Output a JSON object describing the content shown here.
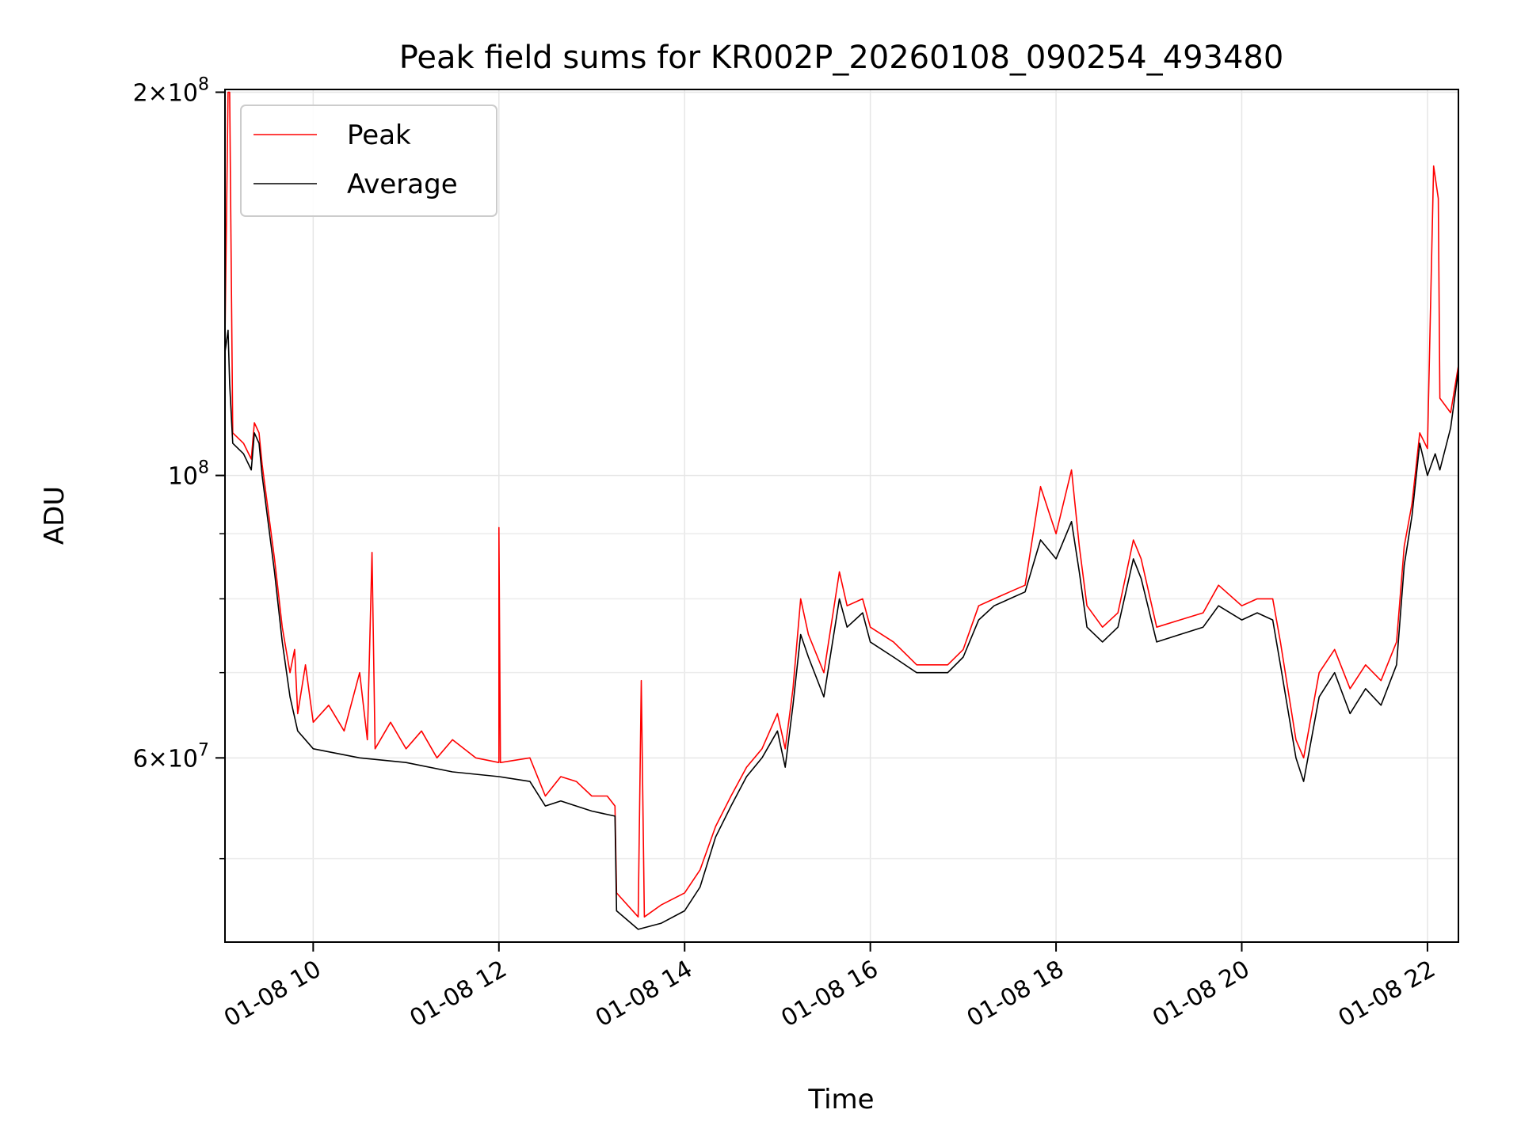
{
  "chart_data": {
    "type": "line",
    "title": "Peak field sums for KR002P_20260108_090254_493480",
    "xlabel": "Time",
    "ylabel": "ADU",
    "y_scale": "log",
    "ylim": [
      43000000,
      201000000
    ],
    "xlim": [
      "2026-01-08T09:03",
      "2026-01-08T22:20"
    ],
    "grid": true,
    "legend_position": "upper left",
    "x_ticks": [
      {
        "time": "2026-01-08T10:00",
        "label": "01-08 10"
      },
      {
        "time": "2026-01-08T12:00",
        "label": "01-08 12"
      },
      {
        "time": "2026-01-08T14:00",
        "label": "01-08 14"
      },
      {
        "time": "2026-01-08T16:00",
        "label": "01-08 16"
      },
      {
        "time": "2026-01-08T18:00",
        "label": "01-08 18"
      },
      {
        "time": "2026-01-08T20:00",
        "label": "01-08 20"
      },
      {
        "time": "2026-01-08T22:00",
        "label": "01-08 22"
      }
    ],
    "y_ticks": [
      {
        "value": 200000000,
        "mantissa": "2",
        "exponent": "8"
      },
      {
        "value": 100000000,
        "mantissa": "",
        "exponent": "8"
      },
      {
        "value": 60000000,
        "mantissa": "6",
        "exponent": "7"
      }
    ],
    "y_minor_ticks": [
      50000000,
      70000000,
      80000000,
      90000000
    ],
    "series": [
      {
        "name": "Peak",
        "color": "#ff0000",
        "points": [
          [
            "2026-01-08T09:03",
            128000000
          ],
          [
            "2026-01-08T09:05",
            200000000
          ],
          [
            "2026-01-08T09:06",
            200000000
          ],
          [
            "2026-01-08T09:08",
            108000000
          ],
          [
            "2026-01-08T09:15",
            106000000
          ],
          [
            "2026-01-08T09:20",
            103000000
          ],
          [
            "2026-01-08T09:22",
            110000000
          ],
          [
            "2026-01-08T09:25",
            108000000
          ],
          [
            "2026-01-08T09:27",
            102000000
          ],
          [
            "2026-01-08T09:35",
            86000000
          ],
          [
            "2026-01-08T09:40",
            76000000
          ],
          [
            "2026-01-08T09:45",
            70000000
          ],
          [
            "2026-01-08T09:48",
            73000000
          ],
          [
            "2026-01-08T09:50",
            65000000
          ],
          [
            "2026-01-08T09:55",
            71000000
          ],
          [
            "2026-01-08T10:00",
            64000000
          ],
          [
            "2026-01-08T10:10",
            66000000
          ],
          [
            "2026-01-08T10:20",
            63000000
          ],
          [
            "2026-01-08T10:30",
            70000000
          ],
          [
            "2026-01-08T10:35",
            62000000
          ],
          [
            "2026-01-08T10:38",
            87000000
          ],
          [
            "2026-01-08T10:40",
            61000000
          ],
          [
            "2026-01-08T10:50",
            64000000
          ],
          [
            "2026-01-08T11:00",
            61000000
          ],
          [
            "2026-01-08T11:10",
            63000000
          ],
          [
            "2026-01-08T11:20",
            60000000
          ],
          [
            "2026-01-08T11:30",
            62000000
          ],
          [
            "2026-01-08T11:45",
            60000000
          ],
          [
            "2026-01-08T12:00",
            59500000
          ],
          [
            "2026-01-08T12:00",
            91000000
          ],
          [
            "2026-01-08T12:01",
            59500000
          ],
          [
            "2026-01-08T12:20",
            60000000
          ],
          [
            "2026-01-08T12:30",
            56000000
          ],
          [
            "2026-01-08T12:40",
            58000000
          ],
          [
            "2026-01-08T12:50",
            57500000
          ],
          [
            "2026-01-08T13:00",
            56000000
          ],
          [
            "2026-01-08T13:10",
            56000000
          ],
          [
            "2026-01-08T13:15",
            55000000
          ],
          [
            "2026-01-08T13:16",
            47000000
          ],
          [
            "2026-01-08T13:30",
            45000000
          ],
          [
            "2026-01-08T13:32",
            69000000
          ],
          [
            "2026-01-08T13:34",
            45000000
          ],
          [
            "2026-01-08T13:45",
            46000000
          ],
          [
            "2026-01-08T14:00",
            47000000
          ],
          [
            "2026-01-08T14:10",
            49000000
          ],
          [
            "2026-01-08T14:20",
            53000000
          ],
          [
            "2026-01-08T14:30",
            56000000
          ],
          [
            "2026-01-08T14:40",
            59000000
          ],
          [
            "2026-01-08T14:50",
            61000000
          ],
          [
            "2026-01-08T15:00",
            65000000
          ],
          [
            "2026-01-08T15:05",
            61000000
          ],
          [
            "2026-01-08T15:10",
            68000000
          ],
          [
            "2026-01-08T15:15",
            80000000
          ],
          [
            "2026-01-08T15:20",
            75000000
          ],
          [
            "2026-01-08T15:30",
            70000000
          ],
          [
            "2026-01-08T15:40",
            84000000
          ],
          [
            "2026-01-08T15:45",
            79000000
          ],
          [
            "2026-01-08T15:55",
            80000000
          ],
          [
            "2026-01-08T16:00",
            76000000
          ],
          [
            "2026-01-08T16:15",
            74000000
          ],
          [
            "2026-01-08T16:30",
            71000000
          ],
          [
            "2026-01-08T16:50",
            71000000
          ],
          [
            "2026-01-08T17:00",
            73000000
          ],
          [
            "2026-01-08T17:10",
            79000000
          ],
          [
            "2026-01-08T17:20",
            80000000
          ],
          [
            "2026-01-08T17:30",
            81000000
          ],
          [
            "2026-01-08T17:40",
            82000000
          ],
          [
            "2026-01-08T17:50",
            98000000
          ],
          [
            "2026-01-08T18:00",
            90000000
          ],
          [
            "2026-01-08T18:10",
            101000000
          ],
          [
            "2026-01-08T18:15",
            88000000
          ],
          [
            "2026-01-08T18:20",
            79000000
          ],
          [
            "2026-01-08T18:30",
            76000000
          ],
          [
            "2026-01-08T18:40",
            78000000
          ],
          [
            "2026-01-08T18:50",
            89000000
          ],
          [
            "2026-01-08T18:55",
            86000000
          ],
          [
            "2026-01-08T19:05",
            76000000
          ],
          [
            "2026-01-08T19:20",
            77000000
          ],
          [
            "2026-01-08T19:35",
            78000000
          ],
          [
            "2026-01-08T19:45",
            82000000
          ],
          [
            "2026-01-08T20:00",
            79000000
          ],
          [
            "2026-01-08T20:10",
            80000000
          ],
          [
            "2026-01-08T20:20",
            80000000
          ],
          [
            "2026-01-08T20:25",
            74000000
          ],
          [
            "2026-01-08T20:35",
            62000000
          ],
          [
            "2026-01-08T20:40",
            60000000
          ],
          [
            "2026-01-08T20:50",
            70000000
          ],
          [
            "2026-01-08T21:00",
            73000000
          ],
          [
            "2026-01-08T21:10",
            68000000
          ],
          [
            "2026-01-08T21:20",
            71000000
          ],
          [
            "2026-01-08T21:30",
            69000000
          ],
          [
            "2026-01-08T21:40",
            74000000
          ],
          [
            "2026-01-08T21:45",
            88000000
          ],
          [
            "2026-01-08T21:50",
            95000000
          ],
          [
            "2026-01-08T21:55",
            108000000
          ],
          [
            "2026-01-08T22:00",
            105000000
          ],
          [
            "2026-01-08T22:04",
            175000000
          ],
          [
            "2026-01-08T22:07",
            165000000
          ],
          [
            "2026-01-08T22:08",
            115000000
          ],
          [
            "2026-01-08T22:15",
            112000000
          ],
          [
            "2026-01-08T22:20",
            122000000
          ]
        ]
      },
      {
        "name": "Average",
        "color": "#000000",
        "points": [
          [
            "2026-01-08T09:03",
            125000000
          ],
          [
            "2026-01-08T09:05",
            130000000
          ],
          [
            "2026-01-08T09:06",
            118000000
          ],
          [
            "2026-01-08T09:08",
            106000000
          ],
          [
            "2026-01-08T09:15",
            104000000
          ],
          [
            "2026-01-08T09:20",
            101000000
          ],
          [
            "2026-01-08T09:22",
            108000000
          ],
          [
            "2026-01-08T09:25",
            106000000
          ],
          [
            "2026-01-08T09:27",
            100000000
          ],
          [
            "2026-01-08T09:35",
            84000000
          ],
          [
            "2026-01-08T09:40",
            74000000
          ],
          [
            "2026-01-08T09:45",
            67000000
          ],
          [
            "2026-01-08T09:50",
            63000000
          ],
          [
            "2026-01-08T10:00",
            61000000
          ],
          [
            "2026-01-08T10:30",
            60000000
          ],
          [
            "2026-01-08T11:00",
            59500000
          ],
          [
            "2026-01-08T11:30",
            58500000
          ],
          [
            "2026-01-08T12:00",
            58000000
          ],
          [
            "2026-01-08T12:20",
            57500000
          ],
          [
            "2026-01-08T12:30",
            55000000
          ],
          [
            "2026-01-08T12:40",
            55500000
          ],
          [
            "2026-01-08T13:00",
            54500000
          ],
          [
            "2026-01-08T13:15",
            54000000
          ],
          [
            "2026-01-08T13:16",
            45500000
          ],
          [
            "2026-01-08T13:30",
            44000000
          ],
          [
            "2026-01-08T13:45",
            44500000
          ],
          [
            "2026-01-08T14:00",
            45500000
          ],
          [
            "2026-01-08T14:10",
            47500000
          ],
          [
            "2026-01-08T14:20",
            52000000
          ],
          [
            "2026-01-08T14:30",
            55000000
          ],
          [
            "2026-01-08T14:40",
            58000000
          ],
          [
            "2026-01-08T14:50",
            60000000
          ],
          [
            "2026-01-08T15:00",
            63000000
          ],
          [
            "2026-01-08T15:05",
            59000000
          ],
          [
            "2026-01-08T15:10",
            66000000
          ],
          [
            "2026-01-08T15:15",
            75000000
          ],
          [
            "2026-01-08T15:20",
            72000000
          ],
          [
            "2026-01-08T15:30",
            67000000
          ],
          [
            "2026-01-08T15:40",
            80000000
          ],
          [
            "2026-01-08T15:45",
            76000000
          ],
          [
            "2026-01-08T15:55",
            78000000
          ],
          [
            "2026-01-08T16:00",
            74000000
          ],
          [
            "2026-01-08T16:15",
            72000000
          ],
          [
            "2026-01-08T16:30",
            70000000
          ],
          [
            "2026-01-08T16:50",
            70000000
          ],
          [
            "2026-01-08T17:00",
            72000000
          ],
          [
            "2026-01-08T17:10",
            77000000
          ],
          [
            "2026-01-08T17:20",
            79000000
          ],
          [
            "2026-01-08T17:30",
            80000000
          ],
          [
            "2026-01-08T17:40",
            81000000
          ],
          [
            "2026-01-08T17:50",
            89000000
          ],
          [
            "2026-01-08T18:00",
            86000000
          ],
          [
            "2026-01-08T18:10",
            92000000
          ],
          [
            "2026-01-08T18:15",
            84000000
          ],
          [
            "2026-01-08T18:20",
            76000000
          ],
          [
            "2026-01-08T18:30",
            74000000
          ],
          [
            "2026-01-08T18:40",
            76000000
          ],
          [
            "2026-01-08T18:50",
            86000000
          ],
          [
            "2026-01-08T18:55",
            83000000
          ],
          [
            "2026-01-08T19:05",
            74000000
          ],
          [
            "2026-01-08T19:20",
            75000000
          ],
          [
            "2026-01-08T19:35",
            76000000
          ],
          [
            "2026-01-08T19:45",
            79000000
          ],
          [
            "2026-01-08T20:00",
            77000000
          ],
          [
            "2026-01-08T20:10",
            78000000
          ],
          [
            "2026-01-08T20:20",
            77000000
          ],
          [
            "2026-01-08T20:25",
            71000000
          ],
          [
            "2026-01-08T20:35",
            60000000
          ],
          [
            "2026-01-08T20:40",
            57500000
          ],
          [
            "2026-01-08T20:50",
            67000000
          ],
          [
            "2026-01-08T21:00",
            70000000
          ],
          [
            "2026-01-08T21:10",
            65000000
          ],
          [
            "2026-01-08T21:20",
            68000000
          ],
          [
            "2026-01-08T21:30",
            66000000
          ],
          [
            "2026-01-08T21:40",
            71000000
          ],
          [
            "2026-01-08T21:45",
            85000000
          ],
          [
            "2026-01-08T21:50",
            93000000
          ],
          [
            "2026-01-08T21:55",
            106000000
          ],
          [
            "2026-01-08T22:00",
            100000000
          ],
          [
            "2026-01-08T22:05",
            104000000
          ],
          [
            "2026-01-08T22:08",
            101000000
          ],
          [
            "2026-01-08T22:15",
            109000000
          ],
          [
            "2026-01-08T22:20",
            121000000
          ]
        ]
      }
    ]
  }
}
